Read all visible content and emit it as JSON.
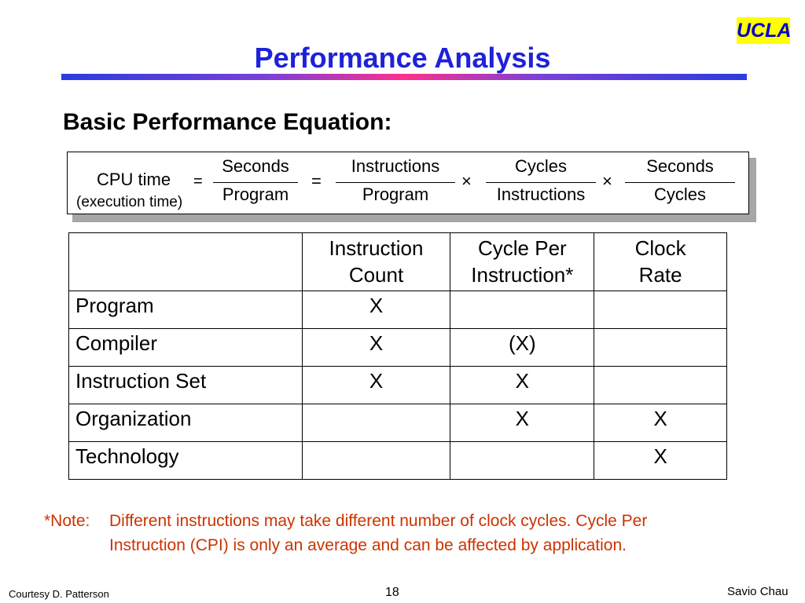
{
  "logo": {
    "text": "UCLA"
  },
  "slide": {
    "title": "Performance Analysis",
    "subtitle": "Basic Performance Equation:"
  },
  "equation": {
    "lhs": "CPU time",
    "lhs_note": "(execution time)",
    "equals": "=",
    "times": "×",
    "fractions": [
      {
        "num": "Seconds",
        "den": "Program"
      },
      {
        "num": "Instructions",
        "den": "Program"
      },
      {
        "num": "Cycles",
        "den": "Instructions"
      },
      {
        "num": "Seconds",
        "den": "Cycles"
      }
    ]
  },
  "table": {
    "headers": [
      "",
      "Instruction\nCount",
      "Cycle Per\nInstruction*",
      "Clock\nRate"
    ],
    "header_lines": [
      [
        "",
        ""
      ],
      [
        "Instruction",
        "Count"
      ],
      [
        "Cycle Per",
        "Instruction*"
      ],
      [
        "Clock",
        "Rate"
      ]
    ],
    "rows": [
      [
        "Program",
        "X",
        "",
        ""
      ],
      [
        "Compiler",
        "X",
        "(X)",
        ""
      ],
      [
        "Instruction Set",
        "X",
        "X",
        ""
      ],
      [
        "Organization",
        "",
        "X",
        "X"
      ],
      [
        "Technology",
        "",
        "",
        "X"
      ]
    ]
  },
  "note": {
    "label": "*Note:",
    "line1": "Different instructions may take different number of clock cycles.  Cycle Per",
    "line2": "Instruction (CPI) is only an average and can be affected by application."
  },
  "footer": {
    "left": "Courtesy D. Patterson",
    "page": "18",
    "right": "Savio Chau"
  },
  "colors": {
    "title": "#1f22d8",
    "note": "#cc3300",
    "logo_bg": "#ffff00",
    "logo_text": "#0000cc"
  }
}
